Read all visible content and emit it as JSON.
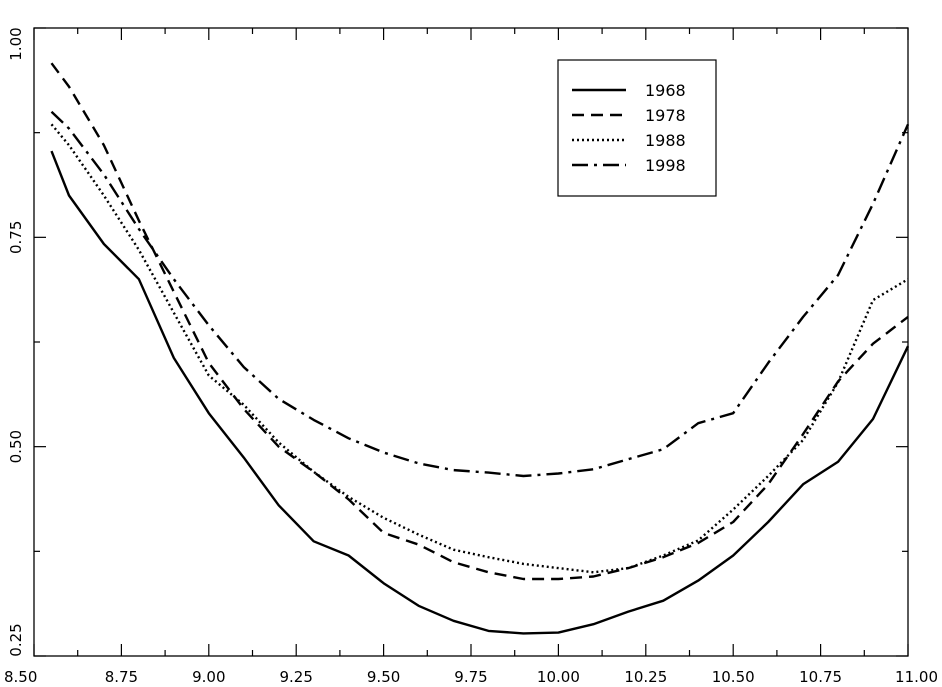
{
  "chart_data": {
    "type": "line",
    "title": "",
    "xlabel": "",
    "ylabel": "",
    "xlim": [
      8.5,
      11.0
    ],
    "ylim": [
      0.25,
      1.0
    ],
    "x_ticks": [
      "8.50",
      "8.75",
      "9.00",
      "9.25",
      "9.50",
      "9.75",
      "10.00",
      "10.25",
      "10.50",
      "10.75",
      "11.00"
    ],
    "y_ticks": [
      "0.25",
      "0.50",
      "0.75",
      "1.00"
    ],
    "grid": false,
    "legend_position": "top-right",
    "x": [
      8.55,
      8.6,
      8.7,
      8.8,
      8.9,
      9.0,
      9.1,
      9.2,
      9.3,
      9.4,
      9.5,
      9.6,
      9.7,
      9.8,
      9.9,
      10.0,
      10.1,
      10.2,
      10.3,
      10.4,
      10.5,
      10.6,
      10.7,
      10.8,
      10.9,
      11.0
    ],
    "series": [
      {
        "name": "1968",
        "dash": "solid",
        "values": [
          0.853,
          0.8,
          0.742,
          0.7,
          0.606,
          0.54,
          0.487,
          0.43,
          0.387,
          0.37,
          0.337,
          0.31,
          0.292,
          0.28,
          0.277,
          0.278,
          0.288,
          0.303,
          0.316,
          0.34,
          0.37,
          0.41,
          0.455,
          0.482,
          0.533,
          0.62
        ]
      },
      {
        "name": "1978",
        "dash": "dashed",
        "values": [
          0.958,
          0.93,
          0.86,
          0.77,
          0.685,
          0.6,
          0.545,
          0.5,
          0.47,
          0.437,
          0.397,
          0.383,
          0.362,
          0.35,
          0.342,
          0.342,
          0.345,
          0.355,
          0.368,
          0.385,
          0.41,
          0.455,
          0.515,
          0.578,
          0.623,
          0.655
        ]
      },
      {
        "name": "1988",
        "dash": "dotted",
        "values": [
          0.885,
          0.86,
          0.8,
          0.735,
          0.66,
          0.585,
          0.55,
          0.505,
          0.47,
          0.44,
          0.415,
          0.395,
          0.377,
          0.368,
          0.36,
          0.355,
          0.35,
          0.355,
          0.37,
          0.388,
          0.425,
          0.465,
          0.508,
          0.577,
          0.675,
          0.7
        ]
      },
      {
        "name": "1998",
        "dash": "dashdot",
        "values": [
          0.9,
          0.88,
          0.825,
          0.76,
          0.7,
          0.645,
          0.595,
          0.557,
          0.532,
          0.51,
          0.493,
          0.48,
          0.472,
          0.469,
          0.465,
          0.468,
          0.473,
          0.485,
          0.497,
          0.528,
          0.54,
          0.6,
          0.655,
          0.705,
          0.79,
          0.885
        ]
      }
    ]
  }
}
